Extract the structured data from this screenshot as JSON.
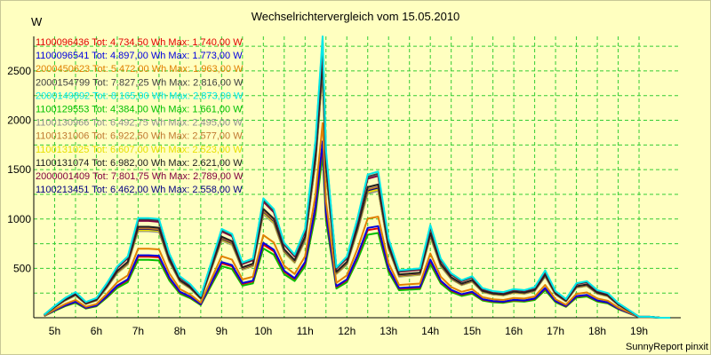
{
  "chart_data": {
    "type": "line",
    "title": "Wechselrichtervergleich vom 15.05.2010",
    "ylabel": "W",
    "ylim": [
      0,
      2850
    ],
    "y_ticks": [
      500,
      1000,
      1500,
      2000,
      2500
    ],
    "x_ticks": [
      "5h",
      "6h",
      "7h",
      "8h",
      "9h",
      "10h",
      "11h",
      "12h",
      "13h",
      "14h",
      "15h",
      "16h",
      "17h",
      "18h",
      "19h"
    ],
    "xlim": [
      4.5,
      20.0
    ],
    "grid": true,
    "legend_position": "top-left",
    "footer": "SunnyReport pinxit",
    "x": [
      4.75,
      5.0,
      5.25,
      5.5,
      5.75,
      6.0,
      6.25,
      6.5,
      6.75,
      7.0,
      7.25,
      7.5,
      7.75,
      8.0,
      8.25,
      8.5,
      8.75,
      9.0,
      9.25,
      9.5,
      9.75,
      10.0,
      10.25,
      10.5,
      10.75,
      11.0,
      11.25,
      11.42,
      11.5,
      11.75,
      12.0,
      12.25,
      12.5,
      12.75,
      13.0,
      13.25,
      13.5,
      13.75,
      14.0,
      14.25,
      14.5,
      14.75,
      15.0,
      15.25,
      15.5,
      15.75,
      16.0,
      16.25,
      16.5,
      16.75,
      17.0,
      17.25,
      17.5,
      17.75,
      18.0,
      18.25,
      18.5,
      18.75,
      19.0,
      19.25,
      19.5,
      19.75
    ],
    "series": [
      {
        "name": "1100096436",
        "legend": "1100096436 Tot: 4.734,50 Wh Max: 1.740,00 W",
        "color": "#e00000",
        "scale": 0.612
      },
      {
        "name": "1100096541",
        "legend": "1100096541 Tot: 4.897,00 Wh Max: 1.773,00 W",
        "color": "#0000e0",
        "scale": 0.627
      },
      {
        "name": "2000450623",
        "legend": "2000450623 Tot: 5.472,00 Wh Max: 1.963,00 W",
        "color": "#e08000",
        "scale": 0.692
      },
      {
        "name": "2000154799",
        "legend": "2000154799 Tot: 7.827,25 Wh Max: 2.816,00 W",
        "color": "#404040",
        "scale": 0.985
      },
      {
        "name": "2000149892",
        "legend": "2000149892 Tot: 8.165,00 Wh Max: 2.873,00 W",
        "color": "#00e8e8",
        "scale": 1.0
      },
      {
        "name": "1100129553",
        "legend": "1100129553 Tot: 4.384,00 Wh Max: 1.661,00 W",
        "color": "#00c000",
        "scale": 0.58
      },
      {
        "name": "1100130966",
        "legend": "1100130966 Tot: 6.492,75 Wh Max: 2.495,00 W",
        "color": "#909090",
        "scale": 0.868
      },
      {
        "name": "1100131006",
        "legend": "1100131006 Tot: 6.922,50 Wh Max: 2.577,00 W",
        "color": "#c07830",
        "scale": 0.897
      },
      {
        "name": "1100131025",
        "legend": "1100131025 Tot: 6.607,00 Wh Max: 2.523,00 W",
        "color": "#e8e000",
        "scale": 0.878
      },
      {
        "name": "1100131074",
        "legend": "1100131074 Tot: 6.982,00 Wh Max: 2.621,00 W",
        "color": "#202020",
        "scale": 0.912
      },
      {
        "name": "2000001409",
        "legend": "2000001409 Tot: 7.801,75 Wh Max: 2.789,00 W",
        "color": "#800040",
        "scale": 0.971
      },
      {
        "name": "1100213451",
        "legend": "1100213451 Tot: 6.462,00 Wh Max: 2.558,00 W",
        "color": "#000080",
        "scale": 0.89
      }
    ],
    "base_profile": [
      30,
      120,
      200,
      260,
      160,
      200,
      350,
      520,
      620,
      1010,
      1010,
      1000,
      650,
      420,
      340,
      220,
      560,
      900,
      850,
      560,
      600,
      1210,
      1100,
      760,
      640,
      900,
      1800,
      2850,
      1700,
      510,
      620,
      1000,
      1450,
      1480,
      800,
      480,
      490,
      500,
      940,
      600,
      450,
      380,
      420,
      300,
      270,
      260,
      290,
      280,
      310,
      480,
      270,
      190,
      350,
      370,
      280,
      250,
      150,
      80,
      10,
      10,
      0,
      0
    ]
  }
}
